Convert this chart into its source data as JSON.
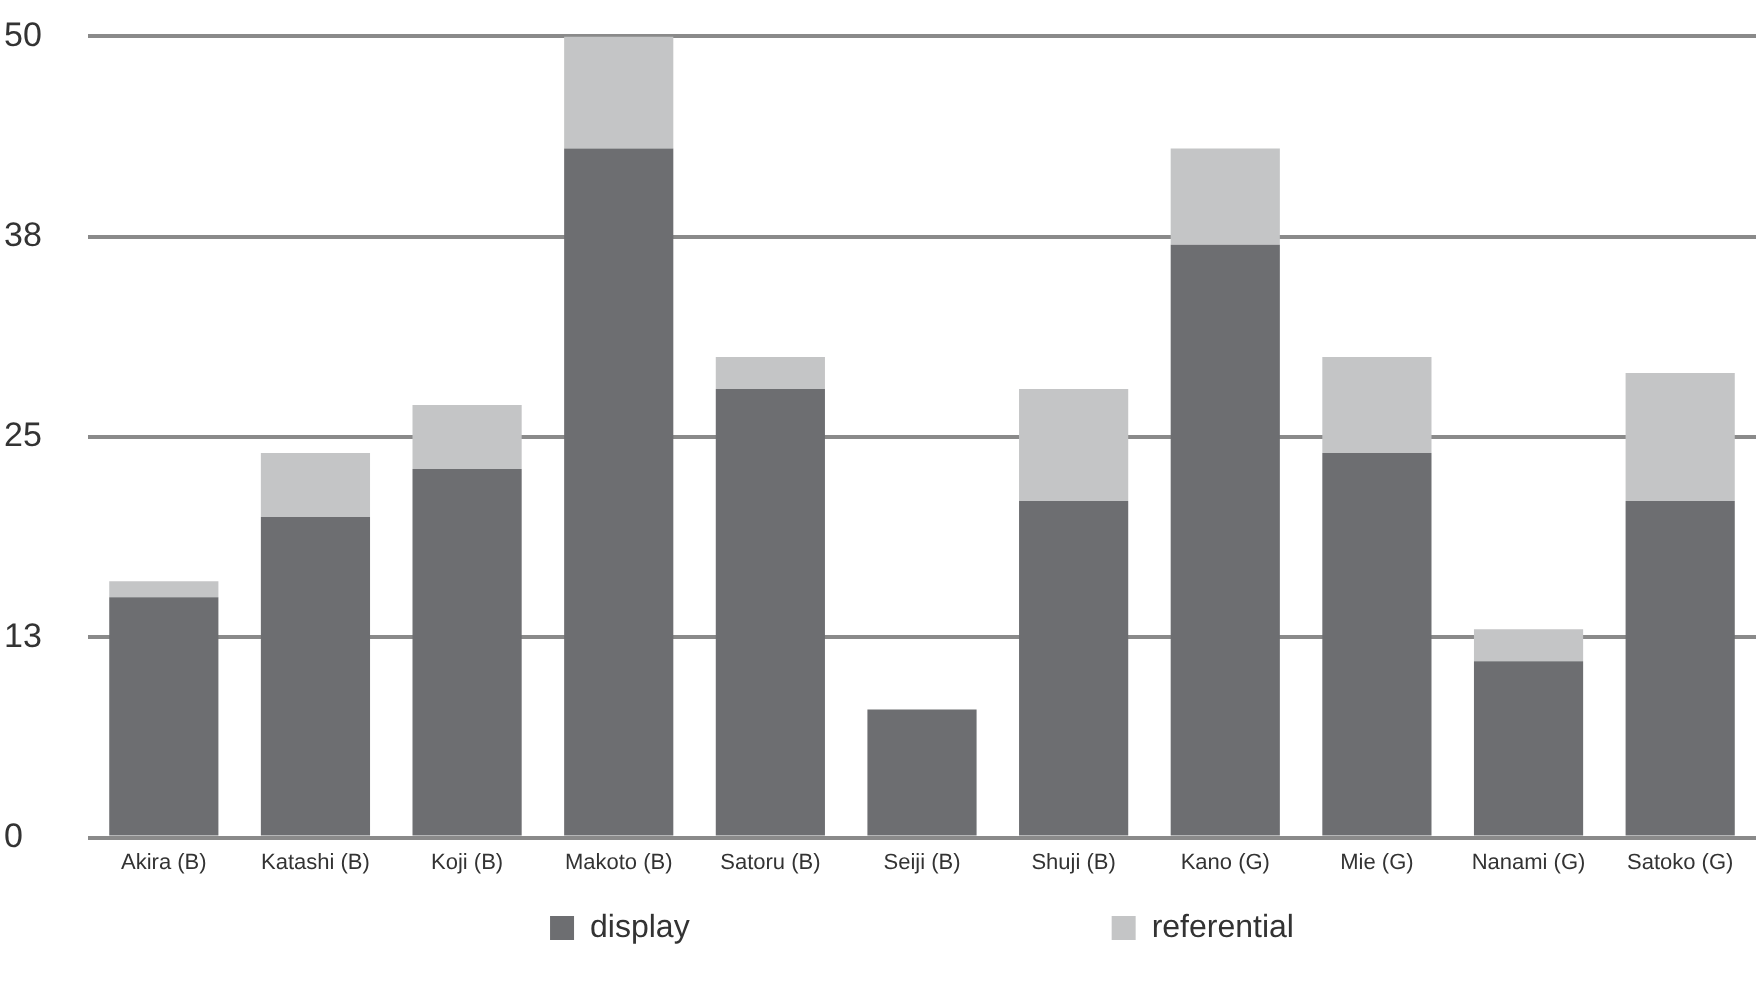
{
  "chart_data": {
    "type": "bar",
    "stacked": true,
    "categories": [
      "Akira (B)",
      "Katashi (B)",
      "Koji (B)",
      "Makoto (B)",
      "Satoru (B)",
      "Seiji (B)",
      "Shuji (B)",
      "Kano (G)",
      "Mie (G)",
      "Nanami (G)",
      "Satoko (G)"
    ],
    "series": [
      {
        "name": "display",
        "color": "#6d6e71",
        "values": [
          15,
          20,
          23,
          43,
          28,
          8,
          21,
          37,
          24,
          11,
          21
        ]
      },
      {
        "name": "referential",
        "color": "#c4c5c6",
        "values": [
          1,
          4,
          4,
          7,
          2,
          0,
          7,
          6,
          6,
          2,
          8
        ]
      }
    ],
    "ylim": [
      0,
      50
    ],
    "yticks": [
      0,
      {
        "value": 12.5,
        "label": "13"
      },
      25,
      {
        "value": 37.5,
        "label": "38"
      },
      50
    ],
    "grid": "y",
    "legend": "bottom"
  }
}
